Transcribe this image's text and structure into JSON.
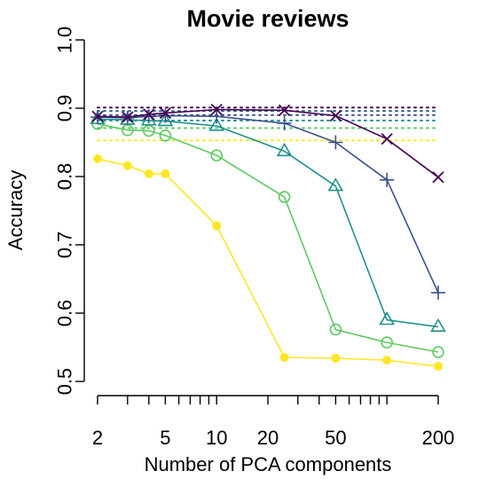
{
  "chart_data": {
    "type": "line",
    "title": "Movie reviews",
    "xlabel": "Number of PCA components",
    "ylabel": "Accuracy",
    "x_scale": "log",
    "xlim": [
      2,
      200
    ],
    "ylim": [
      0.5,
      1.0
    ],
    "x_ticks": [
      2,
      5,
      10,
      20,
      50,
      200
    ],
    "x_tick_labels": [
      "2",
      "5",
      "10",
      "20",
      "50",
      "200"
    ],
    "y_ticks": [
      0.5,
      0.6,
      0.7,
      0.8,
      0.9,
      1.0
    ],
    "y_tick_labels": [
      "0.5",
      "0.6",
      "0.7",
      "0.8",
      "0.9",
      "1.0"
    ],
    "grid": false,
    "series": [
      {
        "color": "#FDE725",
        "marker": "filled-circle",
        "x": [
          2,
          3,
          4,
          5,
          10,
          25,
          50,
          100,
          200
        ],
        "y": [
          0.826,
          0.816,
          0.804,
          0.804,
          0.728,
          0.535,
          0.534,
          0.531,
          0.522
        ],
        "baseline": 0.853
      },
      {
        "color": "#5EC962",
        "marker": "open-circle",
        "x": [
          2,
          3,
          4,
          5,
          10,
          25,
          50,
          100,
          200
        ],
        "y": [
          0.877,
          0.868,
          0.867,
          0.86,
          0.831,
          0.77,
          0.576,
          0.557,
          0.543
        ],
        "baseline": 0.871
      },
      {
        "color": "#21918C",
        "marker": "triangle",
        "x": [
          2,
          3,
          4,
          5,
          10,
          25,
          50,
          100,
          200
        ],
        "y": [
          0.884,
          0.883,
          0.882,
          0.881,
          0.874,
          0.837,
          0.786,
          0.59,
          0.58
        ],
        "baseline": 0.882
      },
      {
        "color": "#3B528B",
        "marker": "plus",
        "x": [
          2,
          3,
          4,
          5,
          10,
          25,
          50,
          100,
          200
        ],
        "y": [
          0.887,
          0.886,
          0.888,
          0.889,
          0.888,
          0.878,
          0.85,
          0.795,
          0.63
        ],
        "baseline": 0.89
      },
      {
        "color": "#440154",
        "marker": "cross",
        "x": [
          2,
          3,
          4,
          5,
          10,
          25,
          50,
          100,
          200
        ],
        "y": [
          0.888,
          0.887,
          0.891,
          0.893,
          0.898,
          0.897,
          0.889,
          0.855,
          0.799
        ],
        "baseline": 0.901
      }
    ],
    "baseline_extra": {
      "color": "#31688E",
      "y": 0.896
    }
  }
}
